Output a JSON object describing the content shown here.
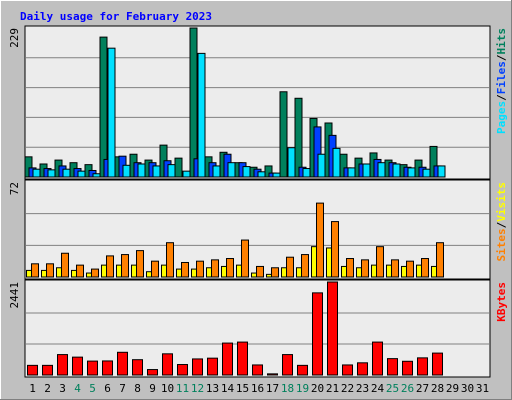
{
  "colors": {
    "background": "#C0C0C0",
    "panel_fill": "#ECECEC",
    "title": "#0000FF",
    "hits": "#00805C",
    "files": "#0040FF",
    "pages": "#00E0FF",
    "visits": "#FFFF00",
    "sites": "#FF8000",
    "kbytes": "#FF0000",
    "weekend_day": "#00805C",
    "weekday": "#000000"
  },
  "chart_data": {
    "type": "bar",
    "title": "Daily usage for February 2023",
    "days": [
      "1",
      "2",
      "3",
      "4",
      "5",
      "6",
      "7",
      "8",
      "9",
      "10",
      "11",
      "12",
      "13",
      "14",
      "15",
      "16",
      "17",
      "18",
      "19",
      "20",
      "21",
      "22",
      "23",
      "24",
      "25",
      "26",
      "27",
      "28",
      "29",
      "30",
      "31"
    ],
    "weekend_days": [
      "4",
      "5",
      "11",
      "12",
      "18",
      "19",
      "25",
      "26"
    ],
    "panels": [
      {
        "id": "top",
        "max_label": "229",
        "ylim": [
          0,
          229
        ],
        "legend": [
          "Pages",
          "/",
          "Files",
          "/",
          "Hits"
        ],
        "series": [
          {
            "name": "Hits",
            "color_key": "hits",
            "values": [
              31,
              20,
              26,
              22,
              19,
              215,
              31,
              35,
              26,
              49,
              29,
              229,
              31,
              38,
              22,
              15,
              17,
              131,
              121,
              90,
              83,
              35,
              29,
              37,
              26,
              19,
              26,
              47,
              0,
              0,
              0
            ]
          },
          {
            "name": "Files",
            "color_key": "files",
            "values": [
              14,
              13,
              17,
              13,
              10,
              27,
              32,
              22,
              22,
              25,
              0,
              28,
              22,
              35,
              22,
              12,
              6,
              0,
              15,
              77,
              64,
              14,
              20,
              27,
              22,
              15,
              15,
              17,
              0,
              0,
              0
            ]
          },
          {
            "name": "Pages",
            "color_key": "pages",
            "values": [
              12,
              11,
              12,
              9,
              5,
              198,
              18,
              20,
              17,
              19,
              9,
              190,
              17,
              22,
              16,
              8,
              6,
              45,
              13,
              35,
              44,
              14,
              20,
              22,
              20,
              14,
              12,
              17,
              0,
              0,
              0
            ]
          }
        ]
      },
      {
        "id": "middle",
        "max_label": "72",
        "ylim": [
          0,
          72
        ],
        "legend": [
          "Sites",
          "/",
          "Visits"
        ],
        "series": [
          {
            "name": "Visits",
            "color_key": "visits",
            "values": [
              5,
              5,
              7,
              5,
              3,
              9,
              9,
              9,
              4,
              9,
              6,
              6,
              7,
              8,
              9,
              3,
              2,
              7,
              7,
              23,
              22,
              8,
              7,
              9,
              9,
              8,
              9,
              8,
              0,
              0,
              0
            ]
          },
          {
            "name": "Sites",
            "color_key": "sites",
            "values": [
              10,
              10,
              18,
              9,
              6,
              16,
              17,
              20,
              12,
              26,
              11,
              12,
              13,
              14,
              28,
              8,
              7,
              15,
              17,
              56,
              42,
              14,
              13,
              23,
              13,
              12,
              14,
              26,
              0,
              0,
              0
            ]
          }
        ]
      },
      {
        "id": "bottom",
        "max_label": "2441",
        "ylim": [
          0,
          2441
        ],
        "legend": [
          "KBytes"
        ],
        "series": [
          {
            "name": "KBytes",
            "color_key": "kbytes",
            "values": [
              253,
              253,
              536,
              469,
              365,
              369,
              596,
              402,
              143,
              556,
              275,
              422,
              442,
              838,
              864,
              264,
              30,
              536,
              253,
              2156,
              2441,
              264,
              320,
              864,
              430,
              360,
              450,
              575,
              0,
              0,
              0
            ]
          }
        ]
      }
    ]
  }
}
